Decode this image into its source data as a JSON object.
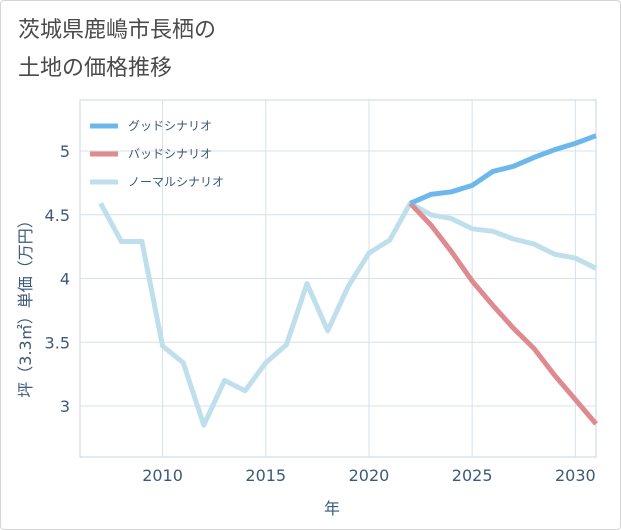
{
  "title_lines": [
    "茨城県鹿嶋市長栖の",
    "土地の価格推移"
  ],
  "chart_data": {
    "type": "line",
    "title": "茨城県鹿嶋市長栖の土地の価格推移",
    "xlabel": "年",
    "ylabel": "坪（3.3㎡）単価（万円）",
    "xlim": [
      2006,
      2031
    ],
    "ylim": [
      2.6,
      5.4
    ],
    "xticks": [
      2010,
      2015,
      2020,
      2025,
      2030
    ],
    "yticks": [
      3,
      3.5,
      4,
      4.5,
      5
    ],
    "ytick_labels": [
      "3",
      "3.5",
      "4",
      "4.5",
      "5"
    ],
    "grid": true,
    "legend_position": "top-left",
    "series": [
      {
        "name": "グッドシナリオ",
        "color": "#6cb8ec",
        "x": [
          2022,
          2023,
          2024,
          2025,
          2026,
          2027,
          2028,
          2029,
          2030,
          2031
        ],
        "y": [
          4.59,
          4.66,
          4.68,
          4.73,
          4.84,
          4.88,
          4.95,
          5.01,
          5.06,
          5.12
        ]
      },
      {
        "name": "バッドシナリオ",
        "color": "#de8a8f",
        "x": [
          2022,
          2023,
          2024,
          2025,
          2026,
          2027,
          2028,
          2029,
          2030,
          2031
        ],
        "y": [
          4.59,
          4.42,
          4.21,
          3.98,
          3.79,
          3.61,
          3.45,
          3.24,
          3.05,
          2.86
        ]
      },
      {
        "name": "ノーマルシナリオ",
        "color": "#bfdfec",
        "x": [
          2007,
          2008,
          2009,
          2010,
          2011,
          2012,
          2013,
          2014,
          2015,
          2016,
          2017,
          2018,
          2019,
          2020,
          2021,
          2022,
          2023,
          2024,
          2025,
          2026,
          2027,
          2028,
          2029,
          2030,
          2031
        ],
        "y": [
          4.59,
          4.29,
          4.29,
          3.47,
          3.34,
          2.85,
          3.2,
          3.12,
          3.34,
          3.48,
          3.96,
          3.59,
          3.94,
          4.2,
          4.3,
          4.59,
          4.5,
          4.47,
          4.39,
          4.37,
          4.31,
          4.27,
          4.19,
          4.16,
          4.08
        ]
      }
    ]
  }
}
